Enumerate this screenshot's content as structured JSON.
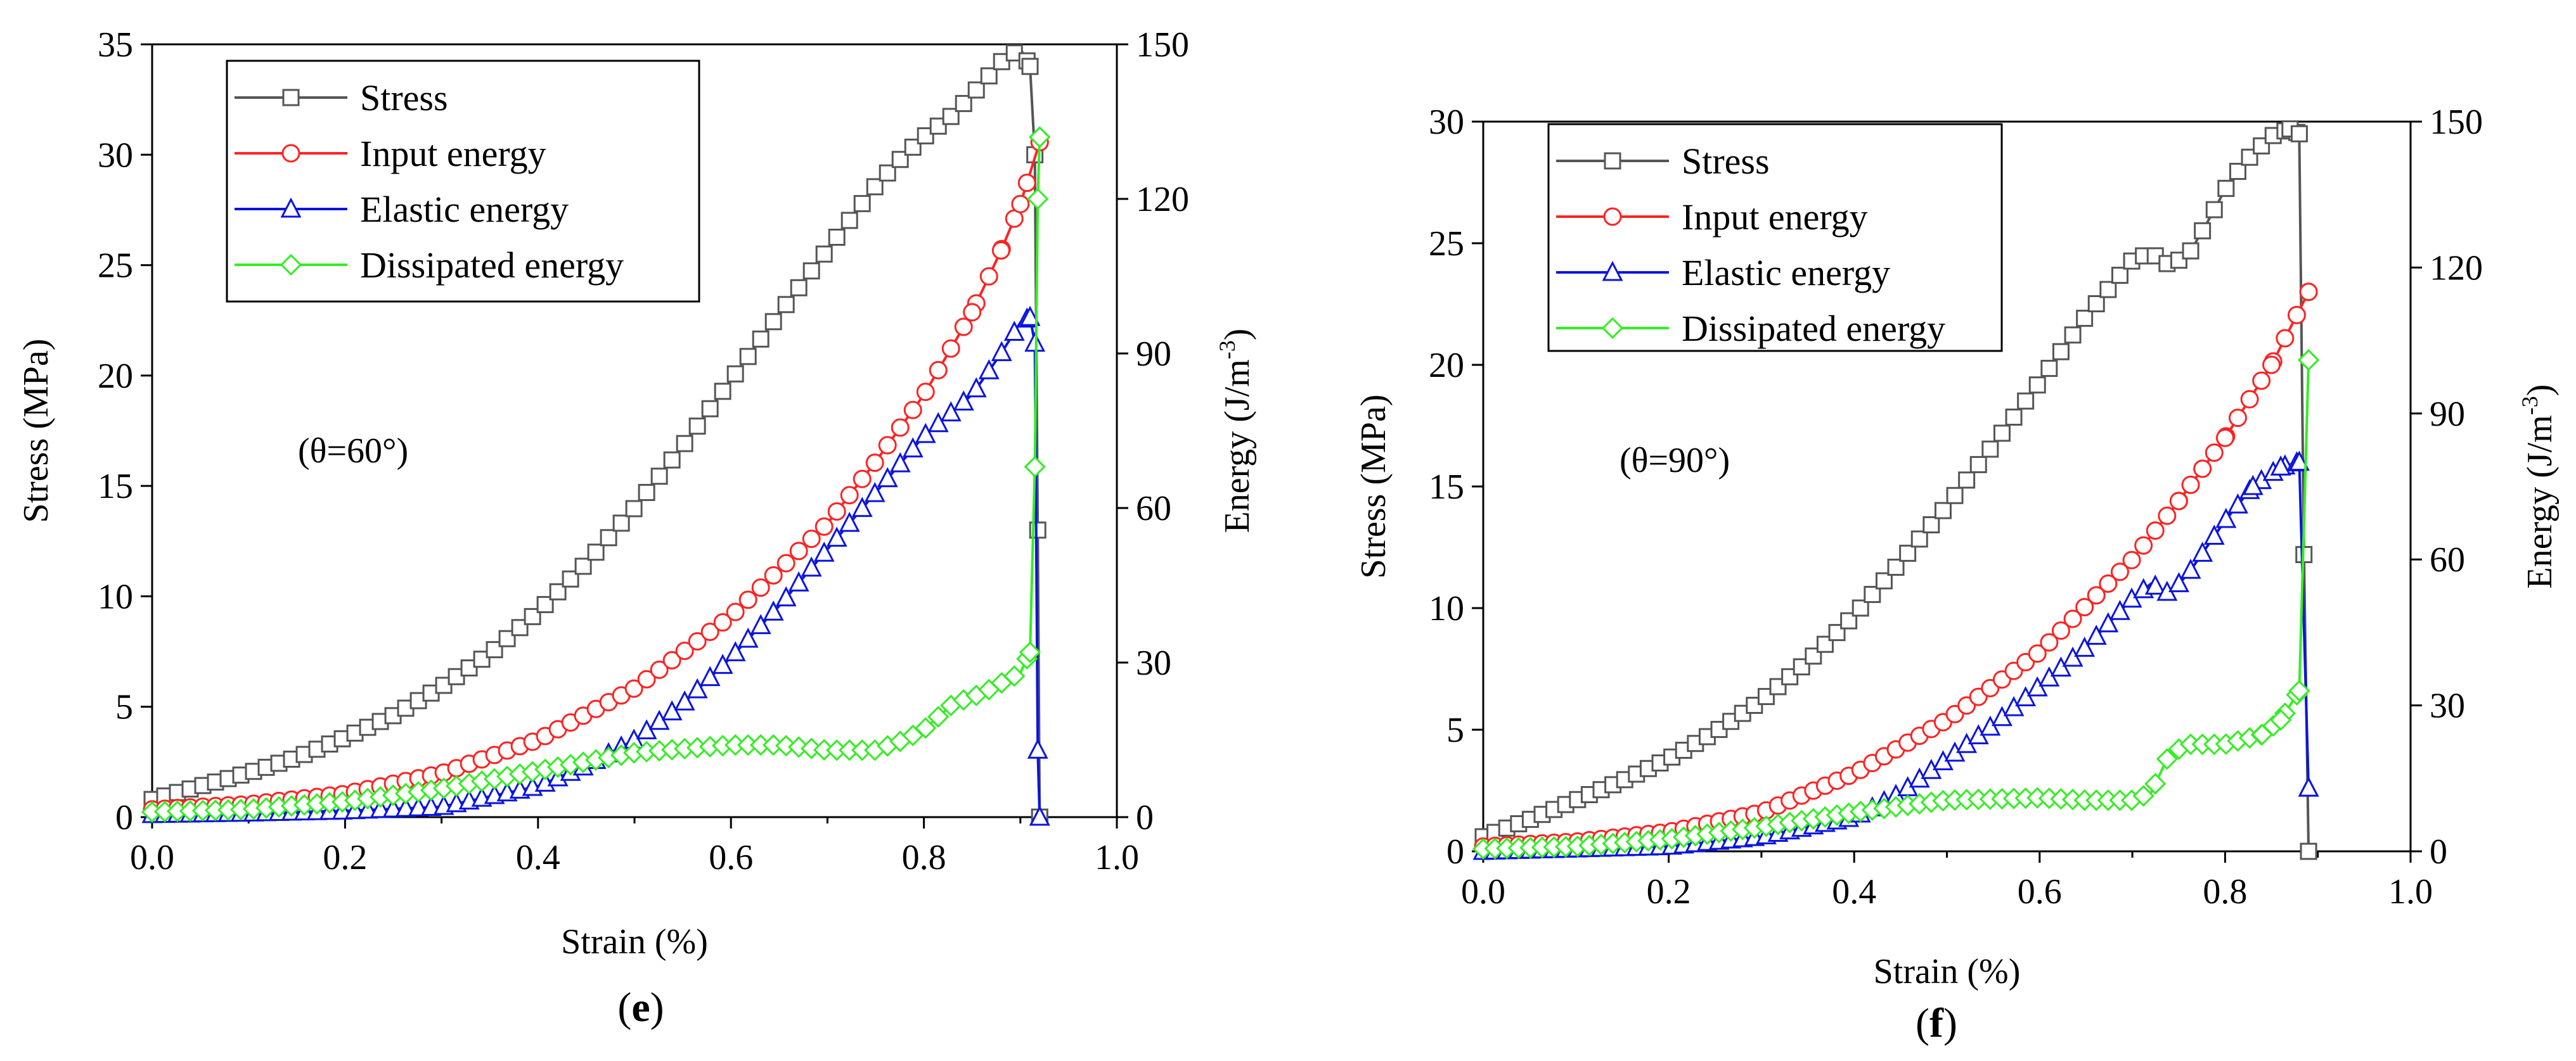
{
  "figure": {
    "panels": [
      "e",
      "f"
    ]
  },
  "chart_data": [
    {
      "type": "line",
      "panel_label": "e",
      "annotation": "(θ=60°)",
      "xlabel": "Strain (%)",
      "ylabel": "Stress (MPa)",
      "y2label_main": "Energy (J/m",
      "y2label_sup": "-3",
      "y2label_close": ")",
      "xlim": [
        0.0,
        1.0
      ],
      "ylim": [
        0,
        35
      ],
      "y2lim": [
        0,
        150
      ],
      "xticks": [
        "0.0",
        "0.2",
        "0.4",
        "0.6",
        "0.8",
        "1.0"
      ],
      "yticks": [
        "0",
        "5",
        "10",
        "15",
        "20",
        "25",
        "30",
        "35"
      ],
      "y2ticks": [
        "0",
        "30",
        "60",
        "90",
        "120",
        "150"
      ],
      "legend_position": "top-left",
      "series": [
        {
          "name": "Stress",
          "axis": "left",
          "color": "#555555",
          "marker": "square",
          "x": [
            0.0,
            0.05,
            0.1,
            0.15,
            0.2,
            0.25,
            0.3,
            0.35,
            0.4,
            0.45,
            0.5,
            0.55,
            0.6,
            0.65,
            0.7,
            0.75,
            0.78,
            0.8,
            0.83,
            0.86,
            0.88,
            0.9,
            0.91,
            0.915,
            0.918,
            0.92
          ],
          "y": [
            0.8,
            1.4,
            2.0,
            2.7,
            3.6,
            4.6,
            5.9,
            7.4,
            9.3,
            11.5,
            14.0,
            16.8,
            19.8,
            22.8,
            25.7,
            28.6,
            30.0,
            30.8,
            31.8,
            33.2,
            34.2,
            34.8,
            34.0,
            30.0,
            13.0,
            0.0
          ]
        },
        {
          "name": "Input energy",
          "axis": "right",
          "color": "#ff2222",
          "marker": "circle",
          "x": [
            0.0,
            0.1,
            0.2,
            0.3,
            0.4,
            0.5,
            0.6,
            0.7,
            0.75,
            0.8,
            0.85,
            0.88,
            0.9,
            0.92
          ],
          "y": [
            1.5,
            2.5,
            4.5,
            8.5,
            15.0,
            25.0,
            39.0,
            57.0,
            69.0,
            82.0,
            98.0,
            110.0,
            119.0,
            131.0
          ]
        },
        {
          "name": "Elastic energy",
          "axis": "right",
          "color": "#0a14e0",
          "marker": "triangle",
          "x": [
            0.0,
            0.1,
            0.2,
            0.3,
            0.4,
            0.45,
            0.5,
            0.55,
            0.6,
            0.65,
            0.7,
            0.75,
            0.8,
            0.85,
            0.88,
            0.9,
            0.91,
            0.915,
            0.918,
            0.92
          ],
          "y": [
            0.5,
            0.8,
            1.2,
            2.0,
            6.0,
            10.0,
            15.0,
            22.0,
            31.0,
            41.0,
            52.0,
            63.0,
            74.0,
            82.0,
            90.0,
            96.0,
            97.0,
            92.0,
            13.0,
            0.0
          ]
        },
        {
          "name": "Dissipated energy",
          "axis": "right",
          "color": "#33ee22",
          "marker": "diamond",
          "x": [
            0.0,
            0.1,
            0.2,
            0.3,
            0.4,
            0.5,
            0.6,
            0.65,
            0.7,
            0.75,
            0.78,
            0.8,
            0.83,
            0.86,
            0.88,
            0.9,
            0.91,
            0.915,
            0.918,
            0.92
          ],
          "y": [
            1.0,
            1.5,
            3.0,
            5.5,
            9.0,
            12.5,
            14.0,
            14.0,
            13.0,
            13.0,
            15.0,
            17.0,
            22.0,
            24.0,
            26.0,
            28.0,
            32.0,
            68.0,
            120.0,
            132.0
          ]
        }
      ]
    },
    {
      "type": "line",
      "panel_label": "f",
      "annotation": "(θ=90°)",
      "xlabel": "Strain (%)",
      "ylabel": "Stress (MPa)",
      "y2label_main": "Energy (J/m",
      "y2label_sup": "-3",
      "y2label_close": ")",
      "xlim": [
        0.0,
        1.0
      ],
      "ylim": [
        0,
        30
      ],
      "y2lim": [
        0,
        150
      ],
      "xticks": [
        "0.0",
        "0.2",
        "0.4",
        "0.6",
        "0.8",
        "1.0"
      ],
      "yticks": [
        "0",
        "5",
        "10",
        "15",
        "20",
        "25",
        "30"
      ],
      "y2ticks": [
        "0",
        "30",
        "60",
        "90",
        "120",
        "150"
      ],
      "legend_position": "top-left",
      "series": [
        {
          "name": "Stress",
          "axis": "left",
          "color": "#555555",
          "marker": "square",
          "x": [
            0.0,
            0.05,
            0.1,
            0.15,
            0.2,
            0.25,
            0.3,
            0.35,
            0.4,
            0.45,
            0.5,
            0.55,
            0.6,
            0.65,
            0.7,
            0.72,
            0.74,
            0.76,
            0.78,
            0.8,
            0.82,
            0.85,
            0.87,
            0.88,
            0.885,
            0.89
          ],
          "y": [
            0.6,
            1.3,
            2.1,
            2.9,
            3.8,
            4.9,
            6.2,
            7.8,
            9.7,
            11.9,
            14.2,
            16.7,
            19.3,
            22.0,
            24.3,
            24.6,
            24.1,
            24.5,
            25.8,
            27.2,
            28.3,
            29.4,
            29.7,
            29.5,
            12.2,
            0.0
          ]
        },
        {
          "name": "Input energy",
          "axis": "right",
          "color": "#ff2222",
          "marker": "circle",
          "x": [
            0.0,
            0.1,
            0.2,
            0.3,
            0.4,
            0.5,
            0.6,
            0.7,
            0.75,
            0.8,
            0.85,
            0.89
          ],
          "y": [
            1.0,
            2.0,
            4.0,
            8.0,
            16.0,
            27.0,
            41.0,
            60.0,
            72.0,
            85.0,
            100.0,
            115.0
          ]
        },
        {
          "name": "Elastic energy",
          "axis": "right",
          "color": "#0a14e0",
          "marker": "triangle",
          "x": [
            0.0,
            0.1,
            0.2,
            0.3,
            0.4,
            0.45,
            0.5,
            0.55,
            0.6,
            0.65,
            0.7,
            0.72,
            0.74,
            0.76,
            0.8,
            0.83,
            0.86,
            0.88,
            0.89
          ],
          "y": [
            0.0,
            0.5,
            1.0,
            3.0,
            7.0,
            12.0,
            19.0,
            26.0,
            34.0,
            42.0,
            52.0,
            55.0,
            53.0,
            57.0,
            68.0,
            75.0,
            79.0,
            80.0,
            13.0
          ]
        },
        {
          "name": "Dissipated energy",
          "axis": "right",
          "color": "#33ee22",
          "marker": "diamond",
          "x": [
            0.0,
            0.1,
            0.2,
            0.3,
            0.4,
            0.5,
            0.6,
            0.65,
            0.7,
            0.72,
            0.74,
            0.76,
            0.8,
            0.84,
            0.86,
            0.88,
            0.89
          ],
          "y": [
            0.5,
            1.0,
            2.5,
            5.0,
            8.0,
            10.5,
            11.0,
            10.5,
            10.5,
            12.0,
            20.0,
            22.0,
            22.0,
            24.0,
            27.0,
            33.0,
            101.0
          ]
        }
      ]
    }
  ]
}
